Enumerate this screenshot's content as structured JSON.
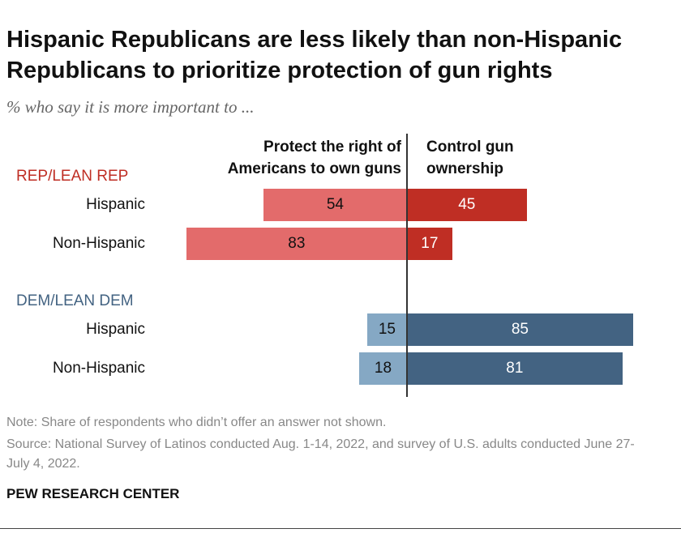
{
  "chart_data": {
    "type": "bar",
    "title": "Hispanic Republicans are less likely than non-Hispanic Republicans to prioritize protection of gun rights",
    "subtitle": "% who say it is more important to ...",
    "column_headers": [
      "Protect the right of Americans to own guns",
      "Control gun ownership"
    ],
    "groups": [
      {
        "name": "REP/LEAN REP",
        "color": "#bf2e24",
        "left_color": "#e36b6b",
        "right_color": "#bf2e24",
        "rows": [
          {
            "label": "Hispanic",
            "protect": 54,
            "control": 45
          },
          {
            "label": "Non-Hispanic",
            "protect": 83,
            "control": 17
          }
        ]
      },
      {
        "name": "DEM/LEAN DEM",
        "color": "#436382",
        "left_color": "#85a8c4",
        "right_color": "#436382",
        "rows": [
          {
            "label": "Hispanic",
            "protect": 15,
            "control": 85
          },
          {
            "label": "Non-Hispanic",
            "protect": 18,
            "control": 81
          }
        ]
      }
    ]
  },
  "notes": {
    "note": "Note: Share of respondents who didn’t offer an answer not shown.",
    "source": "Source: National Survey of Latinos conducted Aug. 1-14, 2022, and survey of U.S. adults conducted June 27-July 4, 2022.",
    "brand": "PEW RESEARCH CENTER"
  }
}
